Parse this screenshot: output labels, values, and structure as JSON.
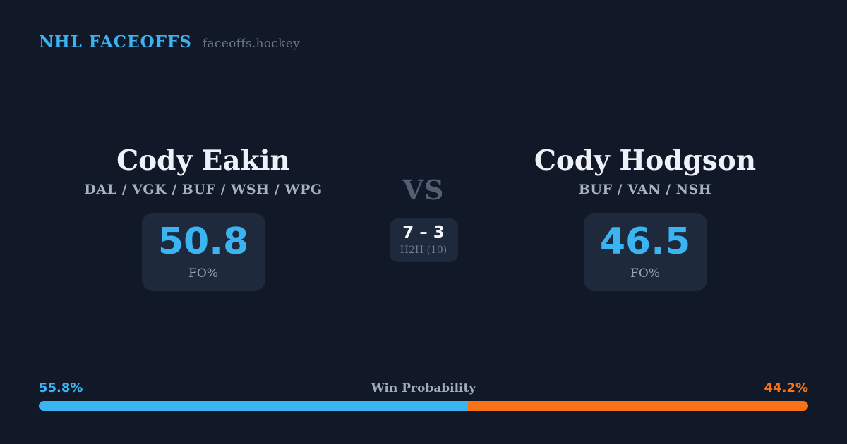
{
  "header": {
    "brand": "NHL FACEOFFS",
    "site": "faceoffs.hockey"
  },
  "matchup": {
    "vs_label": "VS",
    "h2h": {
      "score": "7 – 3",
      "label": "H2H (10)"
    },
    "players": [
      {
        "name": "Cody Eakin",
        "teams": "DAL / VGK / BUF / WSH / WPG",
        "stat_value": "50.8",
        "stat_label": "FO%"
      },
      {
        "name": "Cody Hodgson",
        "teams": "BUF / VAN / NSH",
        "stat_value": "46.5",
        "stat_label": "FO%"
      }
    ]
  },
  "win_probability": {
    "label": "Win Probability",
    "left_pct": "55.8%",
    "right_pct": "44.2%",
    "left_value": 55.8,
    "right_value": 44.2
  },
  "colors": {
    "background": "#111827",
    "card": "#1e293b",
    "accent_blue": "#3bb4f2",
    "accent_orange": "#f97316"
  }
}
